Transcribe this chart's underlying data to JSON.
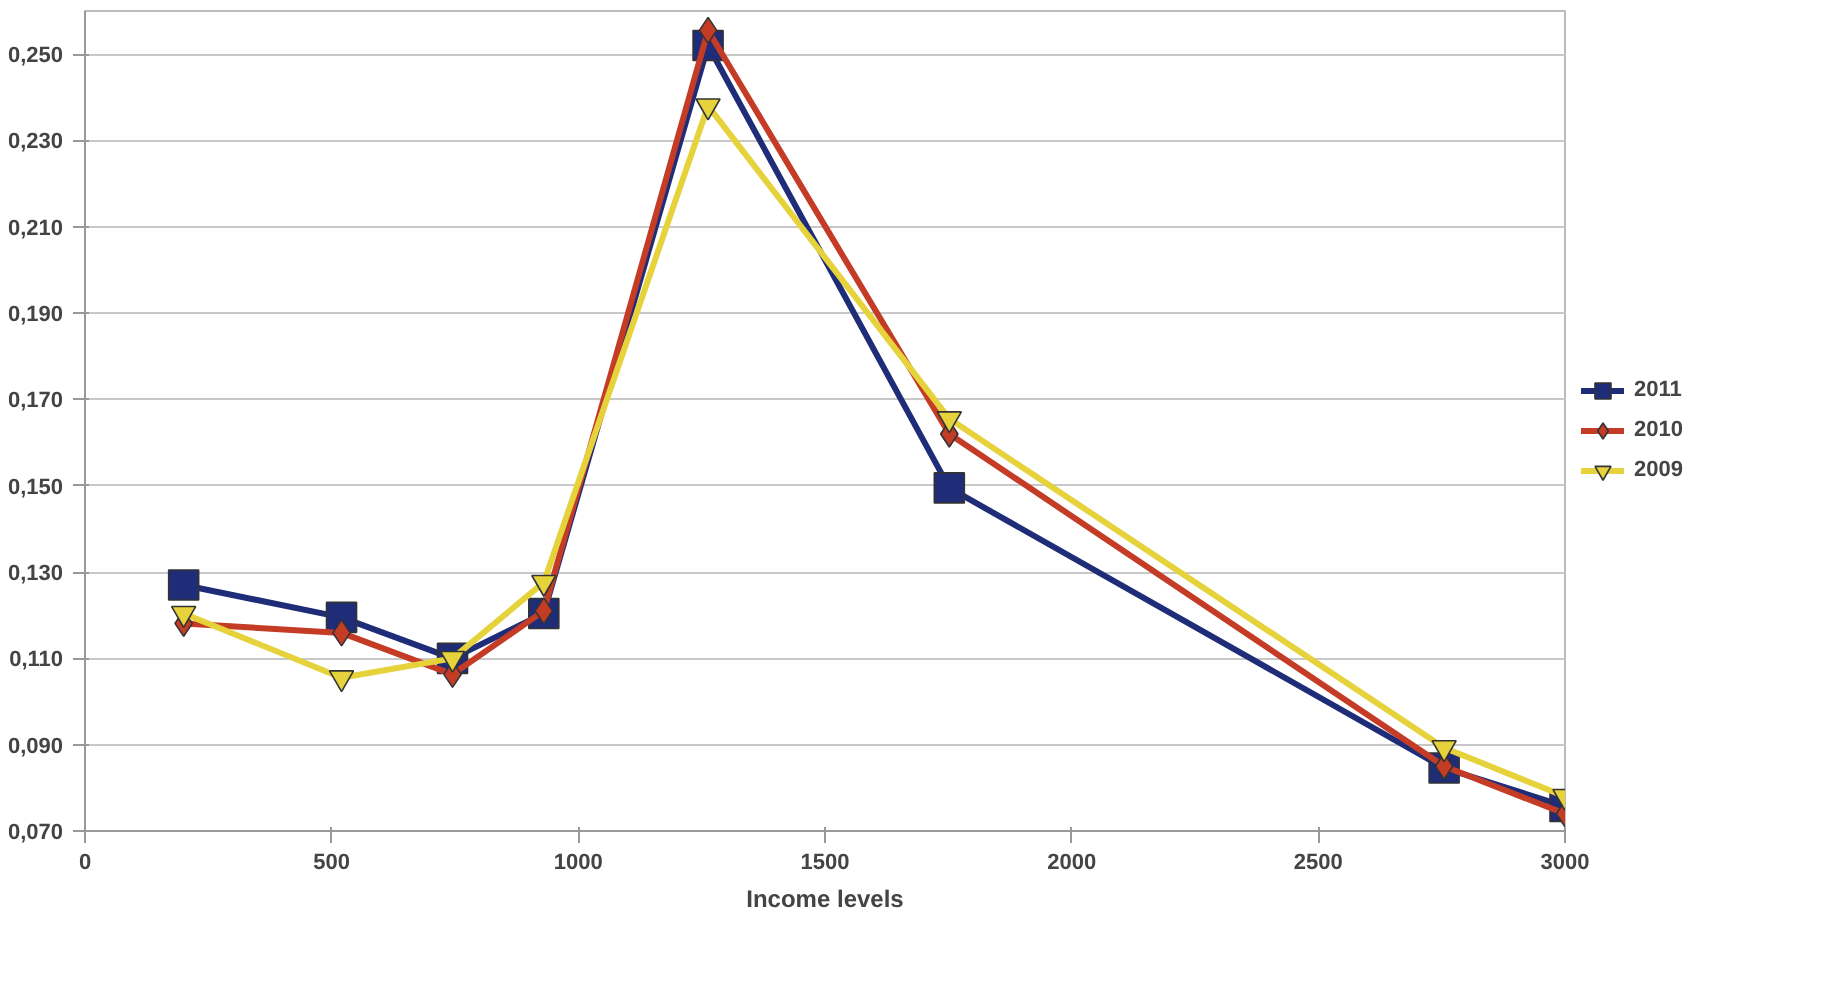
{
  "chart_data": {
    "type": "line",
    "xlabel": "Income levels",
    "x": [
      200,
      520,
      745,
      930,
      1263,
      1752,
      2755,
      3000
    ],
    "series": [
      {
        "name": "2011",
        "color": "#1f2d78",
        "marker": "square",
        "values": [
          0.127,
          0.1195,
          0.11,
          0.1204,
          0.252,
          0.1495,
          0.0846,
          0.0757
        ]
      },
      {
        "name": "2010",
        "color": "#c43c26",
        "marker": "diamond",
        "values": [
          0.1181,
          0.1159,
          0.1063,
          0.121,
          0.2555,
          0.162,
          0.085,
          0.074
        ]
      },
      {
        "name": "2009",
        "color": "#e6d23a",
        "marker": "triangle",
        "values": [
          0.1204,
          0.1055,
          0.11,
          0.1276,
          0.238,
          0.1655,
          0.0893,
          0.078
        ]
      }
    ],
    "xlim": [
      0,
      3000
    ],
    "xticks": [
      0,
      500,
      1000,
      1500,
      2000,
      2500,
      3000
    ],
    "ylim": [
      0.07,
      0.26
    ],
    "yticks": [
      {
        "value": 0.07,
        "label": "0,070"
      },
      {
        "value": 0.09,
        "label": "0,090"
      },
      {
        "value": 0.11,
        "label": "0,110"
      },
      {
        "value": 0.13,
        "label": "0,130"
      },
      {
        "value": 0.15,
        "label": "0,150"
      },
      {
        "value": 0.17,
        "label": "0,170"
      },
      {
        "value": 0.19,
        "label": "0,190"
      },
      {
        "value": 0.21,
        "label": "0,210"
      },
      {
        "value": 0.23,
        "label": "0,230"
      },
      {
        "value": 0.25,
        "label": "0,250"
      }
    ],
    "grid": "y",
    "legend": "right",
    "line_style": "solid"
  }
}
